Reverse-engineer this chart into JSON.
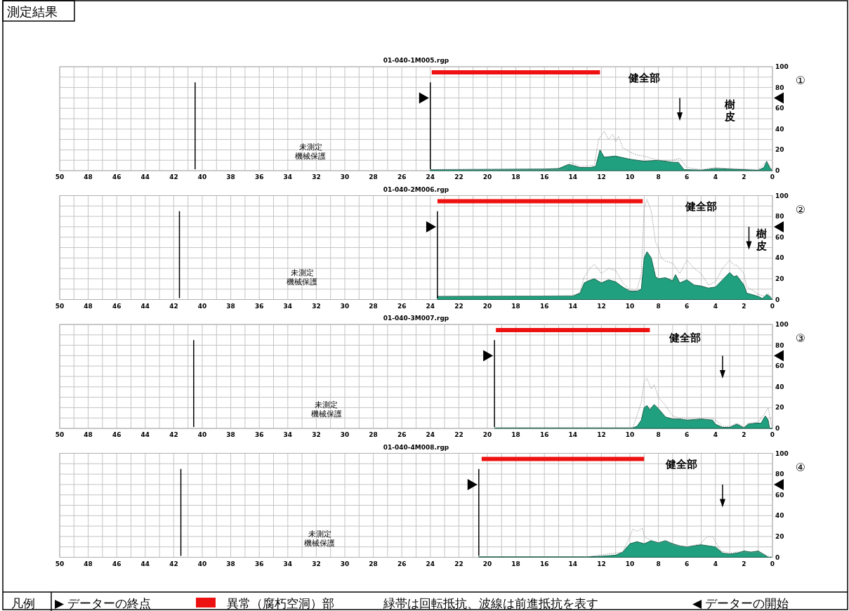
{
  "chart_data": [
    {
      "type": "area",
      "title": "01-040-1M005.rgp",
      "xlim": [
        50,
        0
      ],
      "ylim": [
        0,
        100
      ],
      "grid": true,
      "xticks": [
        50,
        {
          "value": 49,
          "label": null
        },
        48,
        {
          "value": 47,
          "label": null
        },
        46,
        {
          "value": 45,
          "label": null
        },
        44,
        {
          "value": 43,
          "label": null
        },
        42,
        {
          "value": 41,
          "label": null
        },
        40,
        {
          "value": 39,
          "label": null
        },
        38,
        {
          "value": 37,
          "label": null
        },
        36,
        {
          "value": 35,
          "label": null
        },
        34,
        {
          "value": 33,
          "label": null
        },
        32,
        {
          "value": 31,
          "label": null
        },
        30,
        {
          "value": 29,
          "label": null
        },
        28,
        {
          "value": 27,
          "label": null
        },
        26,
        {
          "value": 25,
          "label": null
        },
        24,
        {
          "value": 23,
          "label": null
        },
        22,
        {
          "value": 21,
          "label": null
        },
        20,
        {
          "value": 19,
          "label": null
        },
        18,
        {
          "value": 17,
          "label": null
        },
        16,
        {
          "value": 15,
          "label": null
        },
        14,
        {
          "value": 13,
          "label": null
        },
        12,
        {
          "value": 11,
          "label": null
        },
        10,
        {
          "value": 9,
          "label": null
        },
        8,
        {
          "value": 7,
          "label": null
        },
        6,
        {
          "value": 5,
          "label": null
        },
        4,
        {
          "value": 3,
          "label": null
        },
        2,
        {
          "value": 1,
          "label": null
        },
        0
      ],
      "yticks": [
        0,
        {
          "value": 10,
          "label": null
        },
        20,
        {
          "value": 30,
          "label": null
        },
        40,
        {
          "value": 50,
          "label": null
        },
        60,
        {
          "value": 70,
          "label": null
        },
        80,
        {
          "value": 90,
          "label": null
        },
        100
      ],
      "series": [
        {
          "type": "area",
          "color": "#20a07e",
          "x": [
            24,
            16,
            15,
            14.3,
            14,
            13.5,
            12.8,
            12.4,
            12.1,
            11.8,
            11,
            10,
            9.5,
            9,
            8,
            7,
            6.6,
            6.2,
            5,
            4,
            3,
            2,
            1,
            0.6,
            0.4,
            0.2,
            0
          ],
          "values": [
            1,
            1.5,
            2,
            6,
            5,
            3,
            3,
            4,
            20,
            13,
            14,
            11,
            10,
            9,
            10,
            8,
            8,
            1,
            0.5,
            2,
            1.5,
            1,
            0.3,
            3,
            9,
            3,
            0
          ]
        },
        {
          "type": "line",
          "color": "#9a9a9a",
          "line_style": "dotted",
          "x": [
            24,
            14.5,
            14.2,
            13.5,
            12.5,
            12.2,
            11.8,
            11.5,
            11.2,
            11,
            10.8,
            10.5,
            10,
            9.5,
            9,
            8,
            7,
            6.5,
            6,
            5,
            4,
            3,
            2,
            1,
            0.4,
            0
          ],
          "values": [
            1,
            1,
            8,
            4,
            5,
            30,
            38,
            30,
            35,
            28,
            33,
            22,
            18,
            15,
            14,
            10,
            10,
            12,
            3,
            1,
            3,
            2,
            1.5,
            1,
            9,
            0
          ]
        }
      ],
      "bands": [
        {
          "axis": "x",
          "from": 23.9,
          "to": 12.1,
          "color": "#ee1111"
        }
      ],
      "ref_lines": [
        {
          "axis": "x",
          "value": 24,
          "color": "#000000"
        },
        {
          "axis": "x",
          "value": 40.5,
          "color": "#000000"
        }
      ],
      "annotations": [
        "①",
        "健全部",
        "未測定機械保護",
        "樹皮"
      ]
    },
    {
      "type": "area",
      "title": "01-040-2M006.rgp",
      "xlim": [
        50,
        0
      ],
      "ylim": [
        0,
        100
      ],
      "grid": true,
      "xticks": [
        50,
        {
          "value": 49,
          "label": null
        },
        48,
        {
          "value": 47,
          "label": null
        },
        46,
        {
          "value": 45,
          "label": null
        },
        44,
        {
          "value": 43,
          "label": null
        },
        42,
        {
          "value": 41,
          "label": null
        },
        40,
        {
          "value": 39,
          "label": null
        },
        38,
        {
          "value": 37,
          "label": null
        },
        36,
        {
          "value": 35,
          "label": null
        },
        34,
        {
          "value": 33,
          "label": null
        },
        32,
        {
          "value": 31,
          "label": null
        },
        30,
        {
          "value": 29,
          "label": null
        },
        28,
        {
          "value": 27,
          "label": null
        },
        26,
        {
          "value": 25,
          "label": null
        },
        24,
        {
          "value": 23,
          "label": null
        },
        22,
        {
          "value": 21,
          "label": null
        },
        20,
        {
          "value": 19,
          "label": null
        },
        18,
        {
          "value": 17,
          "label": null
        },
        16,
        {
          "value": 15,
          "label": null
        },
        14,
        {
          "value": 13,
          "label": null
        },
        12,
        {
          "value": 11,
          "label": null
        },
        10,
        {
          "value": 9,
          "label": null
        },
        8,
        {
          "value": 7,
          "label": null
        },
        6,
        {
          "value": 5,
          "label": null
        },
        4,
        {
          "value": 3,
          "label": null
        },
        2,
        {
          "value": 1,
          "label": null
        },
        0
      ],
      "yticks": [
        0,
        {
          "value": 10,
          "label": null
        },
        20,
        {
          "value": 30,
          "label": null
        },
        40,
        {
          "value": 50,
          "label": null
        },
        60,
        {
          "value": 70,
          "label": null
        },
        80,
        {
          "value": 90,
          "label": null
        },
        100
      ],
      "series": [
        {
          "type": "area",
          "color": "#20a07e",
          "x": [
            23.5,
            14,
            13.5,
            13.2,
            12.9,
            12.5,
            12,
            11.5,
            11,
            10.5,
            10,
            9.5,
            9.2,
            9,
            8.8,
            8.5,
            8.2,
            8,
            7.5,
            7,
            6.8,
            6.5,
            6,
            5.5,
            5,
            4.5,
            4,
            3.5,
            3,
            2.7,
            2.5,
            2,
            1.8,
            1.5,
            1,
            0.7,
            0.4,
            0.2,
            0
          ],
          "values": [
            3,
            3.5,
            6,
            16,
            18,
            20,
            16,
            19,
            17,
            12,
            8,
            8,
            10,
            40,
            46,
            40,
            22,
            20,
            21,
            18,
            24,
            16,
            19,
            14,
            13,
            11,
            12,
            19,
            26,
            22,
            23,
            14,
            6,
            5,
            3,
            1,
            5,
            3,
            0
          ]
        },
        {
          "type": "line",
          "color": "#9a9a9a",
          "line_style": "dotted",
          "x": [
            23.5,
            14,
            13.5,
            13.2,
            12.8,
            12.5,
            12,
            11.5,
            11,
            10.5,
            10,
            9.5,
            9.2,
            9,
            8.8,
            8.5,
            8.2,
            8,
            7.8,
            7.5,
            7,
            6.5,
            6,
            5.5,
            5,
            4.5,
            4,
            3.5,
            3,
            2.7,
            2.5,
            2,
            1.8,
            1.5,
            1,
            0.5,
            0.3,
            0
          ],
          "values": [
            3,
            3.5,
            7,
            22,
            30,
            34,
            25,
            30,
            28,
            16,
            9,
            9,
            25,
            88,
            96,
            85,
            55,
            50,
            40,
            37,
            35,
            25,
            38,
            30,
            25,
            14,
            17,
            30,
            38,
            33,
            33,
            25,
            12,
            10,
            5,
            3,
            6,
            0
          ]
        }
      ],
      "bands": [
        {
          "axis": "x",
          "from": 23.5,
          "to": 9.1,
          "color": "#ee1111"
        }
      ],
      "ref_lines": [
        {
          "axis": "x",
          "value": 23.5,
          "color": "#000000"
        },
        {
          "axis": "x",
          "value": 41.6,
          "color": "#000000"
        }
      ],
      "annotations": [
        "②",
        "健全部",
        "未測定機械保護",
        "樹皮"
      ]
    },
    {
      "type": "area",
      "title": "01-040-3M007.rgp",
      "xlim": [
        50,
        0
      ],
      "ylim": [
        0,
        100
      ],
      "grid": true,
      "xticks": [
        50,
        {
          "value": 49,
          "label": null
        },
        48,
        {
          "value": 47,
          "label": null
        },
        46,
        {
          "value": 45,
          "label": null
        },
        44,
        {
          "value": 43,
          "label": null
        },
        42,
        {
          "value": 41,
          "label": null
        },
        40,
        {
          "value": 39,
          "label": null
        },
        38,
        {
          "value": 37,
          "label": null
        },
        36,
        {
          "value": 35,
          "label": null
        },
        34,
        {
          "value": 33,
          "label": null
        },
        32,
        {
          "value": 31,
          "label": null
        },
        30,
        {
          "value": 29,
          "label": null
        },
        28,
        {
          "value": 27,
          "label": null
        },
        26,
        {
          "value": 25,
          "label": null
        },
        24,
        {
          "value": 23,
          "label": null
        },
        22,
        {
          "value": 21,
          "label": null
        },
        20,
        {
          "value": 19,
          "label": null
        },
        18,
        {
          "value": 17,
          "label": null
        },
        16,
        {
          "value": 15,
          "label": null
        },
        14,
        {
          "value": 13,
          "label": null
        },
        12,
        {
          "value": 11,
          "label": null
        },
        10,
        {
          "value": 9,
          "label": null
        },
        8,
        {
          "value": 7,
          "label": null
        },
        6,
        {
          "value": 5,
          "label": null
        },
        4,
        {
          "value": 3,
          "label": null
        },
        2,
        {
          "value": 1,
          "label": null
        },
        0
      ],
      "yticks": [
        0,
        {
          "value": 10,
          "label": null
        },
        20,
        {
          "value": 30,
          "label": null
        },
        40,
        {
          "value": 50,
          "label": null
        },
        60,
        {
          "value": 70,
          "label": null
        },
        80,
        {
          "value": 90,
          "label": null
        },
        100
      ],
      "series": [
        {
          "type": "area",
          "color": "#20a07e",
          "x": [
            19.5,
            9.8,
            9.5,
            9.2,
            9,
            8.8,
            8.6,
            8.3,
            8,
            7.5,
            7,
            6.5,
            6,
            5,
            4.2,
            4,
            3.5,
            3,
            2.5,
            2.2,
            2,
            1.7,
            1.2,
            0.8,
            0.5,
            0.3,
            0.2,
            0
          ],
          "values": [
            0.5,
            0.5,
            2,
            8,
            20,
            22,
            18,
            23,
            19,
            11,
            9,
            9,
            8,
            9,
            8,
            4,
            1,
            1,
            4,
            2,
            0.5,
            4,
            5,
            5,
            12,
            8,
            0,
            0
          ]
        },
        {
          "type": "line",
          "color": "#9a9a9a",
          "line_style": "dotted",
          "x": [
            19.5,
            9.8,
            9.2,
            9,
            8.8,
            8.5,
            8.3,
            8,
            7.5,
            7,
            6.5,
            6,
            5,
            4.2,
            3.8,
            3.5,
            3,
            2.5,
            2.2,
            2,
            1.7,
            1,
            0.5,
            0.3,
            0.1,
            0
          ],
          "values": [
            0.5,
            0.5,
            25,
            45,
            48,
            38,
            42,
            30,
            22,
            12,
            10,
            10,
            10,
            10,
            6,
            2,
            2,
            5,
            3,
            1,
            5,
            6,
            15,
            20,
            5,
            0
          ]
        }
      ],
      "bands": [
        {
          "axis": "x",
          "from": 19.4,
          "to": 8.6,
          "color": "#ee1111"
        }
      ],
      "ref_lines": [
        {
          "axis": "x",
          "value": 19.5,
          "color": "#000000"
        },
        {
          "axis": "x",
          "value": 40.6,
          "color": "#000000"
        }
      ],
      "annotations": [
        "③",
        "健全部",
        "未測定機械保護"
      ]
    },
    {
      "type": "area",
      "title": "01-040-4M008.rgp",
      "xlim": [
        50,
        0
      ],
      "ylim": [
        0,
        100
      ],
      "grid": true,
      "xticks": [
        50,
        {
          "value": 49,
          "label": null
        },
        48,
        {
          "value": 47,
          "label": null
        },
        46,
        {
          "value": 45,
          "label": null
        },
        44,
        {
          "value": 43,
          "label": null
        },
        42,
        {
          "value": 41,
          "label": null
        },
        40,
        {
          "value": 39,
          "label": null
        },
        38,
        {
          "value": 37,
          "label": null
        },
        36,
        {
          "value": 35,
          "label": null
        },
        34,
        {
          "value": 33,
          "label": null
        },
        32,
        {
          "value": 31,
          "label": null
        },
        30,
        {
          "value": 29,
          "label": null
        },
        28,
        {
          "value": 27,
          "label": null
        },
        26,
        {
          "value": 25,
          "label": null
        },
        24,
        {
          "value": 23,
          "label": null
        },
        22,
        {
          "value": 21,
          "label": null
        },
        20,
        {
          "value": 19,
          "label": null
        },
        18,
        {
          "value": 17,
          "label": null
        },
        16,
        {
          "value": 15,
          "label": null
        },
        14,
        {
          "value": 13,
          "label": null
        },
        12,
        {
          "value": 11,
          "label": null
        },
        10,
        {
          "value": 9,
          "label": null
        },
        8,
        {
          "value": 7,
          "label": null
        },
        6,
        {
          "value": 5,
          "label": null
        },
        4,
        {
          "value": 3,
          "label": null
        },
        2,
        {
          "value": 1,
          "label": null
        },
        0
      ],
      "yticks": [
        0,
        {
          "value": 10,
          "label": null
        },
        20,
        {
          "value": 30,
          "label": null
        },
        40,
        {
          "value": 50,
          "label": null
        },
        60,
        {
          "value": 70,
          "label": null
        },
        80,
        {
          "value": 90,
          "label": null
        },
        100
      ],
      "series": [
        {
          "type": "area",
          "color": "#20a07e",
          "x": [
            20.6,
            13,
            12,
            11,
            10.5,
            10,
            9.5,
            9,
            8.5,
            8,
            7.5,
            7,
            6.5,
            6,
            5.5,
            5,
            4.5,
            4,
            3.5,
            3,
            2.5,
            2,
            1.5,
            1,
            0.5,
            0.3,
            0
          ],
          "values": [
            0.5,
            0.5,
            1,
            2,
            5,
            13,
            15,
            13,
            16,
            14,
            16,
            13,
            11,
            10,
            11,
            12,
            11,
            10,
            4,
            3,
            4,
            6,
            5,
            6,
            2,
            0,
            0
          ]
        },
        {
          "type": "line",
          "color": "#9a9a9a",
          "line_style": "dotted",
          "x": [
            20.6,
            13,
            10.5,
            10,
            9.8,
            9.5,
            9.1,
            9,
            8.5,
            8,
            7.5,
            7,
            6,
            5,
            4.8,
            4.5,
            4.2,
            4,
            3.6,
            3,
            2.5,
            2,
            1,
            0.5,
            0
          ],
          "values": [
            0.5,
            0.5,
            5,
            20,
            27,
            25,
            28,
            20,
            16,
            14,
            16,
            12,
            10,
            13,
            17,
            20,
            20,
            15,
            6,
            4,
            5,
            5,
            5,
            2,
            0
          ]
        }
      ],
      "bands": [
        {
          "axis": "x",
          "from": 20.4,
          "to": 9,
          "color": "#ee1111"
        }
      ],
      "ref_lines": [
        {
          "axis": "x",
          "value": 20.6,
          "color": "#000000"
        },
        {
          "axis": "x",
          "value": 41.5,
          "color": "#000000"
        }
      ],
      "annotations": [
        "④",
        "健全部",
        "未測定機械保護"
      ]
    },
    {
      "type": "other",
      "title": "測定結果",
      "annotations": [
        "凡例",
        "▶ データーの終点",
        "異常（腐朽空洞）部",
        "緑帯は回転抵抗、波線は前進抵抗を表す",
        "◀ データーの開始"
      ]
    }
  ]
}
